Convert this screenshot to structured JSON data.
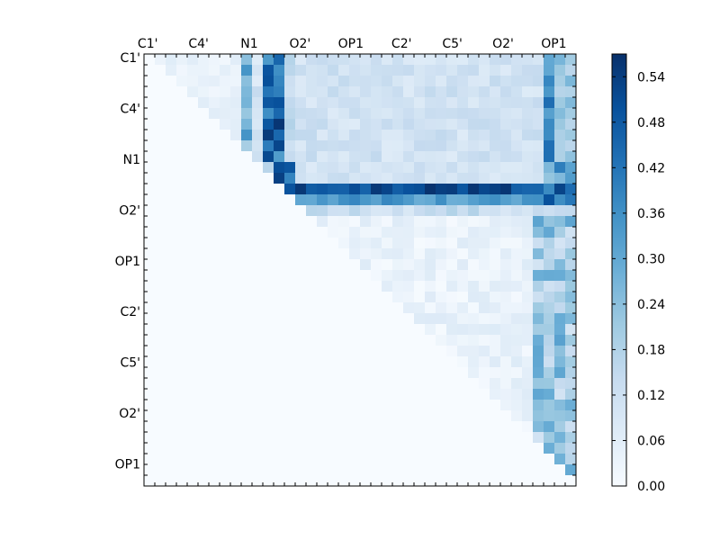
{
  "chart_data": {
    "type": "heatmap",
    "title": "",
    "xlabel": "",
    "ylabel": "",
    "x_tick_labels": [
      "C1'",
      "C4'",
      "N1",
      "O2'",
      "OP1",
      "C2'",
      "C5'",
      "O2'",
      "OP1"
    ],
    "y_tick_labels": [
      "C1'",
      "C4'",
      "N1",
      "O2'",
      "OP1",
      "C2'",
      "C5'",
      "O2'",
      "OP1"
    ],
    "x_axis_position": "top",
    "grid": false,
    "colormap": "Blues",
    "colormap_low": "#f7fbff",
    "colormap_high": "#08306b",
    "colorbar": {
      "range": [
        0.0,
        0.57
      ],
      "ticks": [
        0.0,
        0.06,
        0.12,
        0.18,
        0.24,
        0.3,
        0.36,
        0.42,
        0.48,
        0.54
      ],
      "tick_labels": [
        "0.00",
        "0.06",
        "0.12",
        "0.18",
        "0.24",
        "0.30",
        "0.36",
        "0.42",
        "0.48",
        "0.54"
      ],
      "placement": "right"
    },
    "matrix_size": 40,
    "value_range": [
      0.0,
      0.57
    ],
    "blocks_upper_triangle": [
      {
        "rows": "C1' to C4'",
        "cols": "C1' to O2'",
        "approx_value": 0.06
      },
      {
        "rows": "C1' to O2'",
        "cols": "OP1 group",
        "approx_value": 0.45
      },
      {
        "rows": "C1' to O2'",
        "cols": "C2' to OP1",
        "approx_value": 0.12
      },
      {
        "rows": "OP1",
        "cols": "OP1 to OP1",
        "approx_value": 0.5
      },
      {
        "rows": "C2' to OP1",
        "cols": "OP1 (last)",
        "approx_value": 0.25
      },
      {
        "rows": "C2' to O2'",
        "cols": "C2' to O2'",
        "approx_value": 0.03
      }
    ]
  }
}
